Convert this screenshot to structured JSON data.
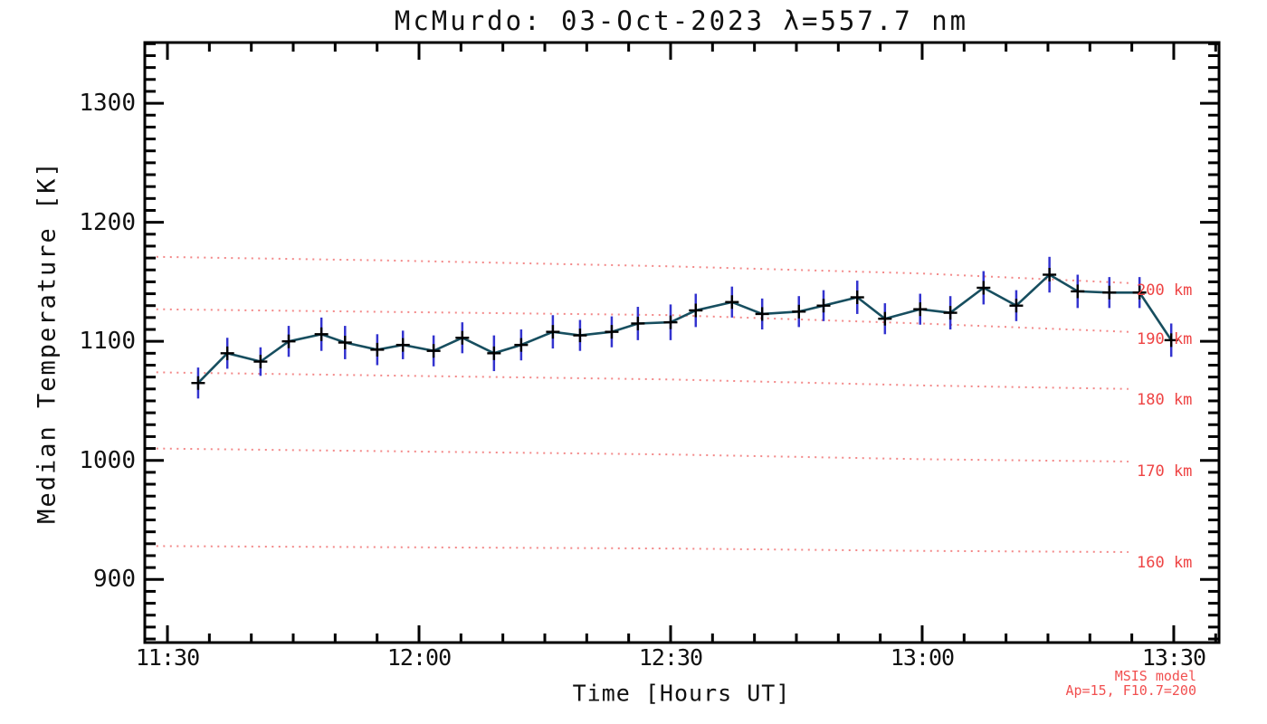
{
  "colors": {
    "frame": "#000000",
    "data_line": "#174e5f",
    "error_bar": "#3333cf",
    "marker": "#000000",
    "model_line": "#f38888",
    "model_label": "#ee4343",
    "annotation": "#f15050"
  },
  "chart_data": {
    "type": "line",
    "title": "McMurdo: 03-Oct-2023 λ=557.7 nm",
    "xlabel": "Time [Hours UT]",
    "ylabel": "Median Temperature [K]",
    "xlim": [
      11.455,
      13.59
    ],
    "ylim": [
      847,
      1351
    ],
    "grid": false,
    "x_major_ticks": [
      {
        "value": 11.5,
        "label": "11:30"
      },
      {
        "value": 12.0,
        "label": "12:00"
      },
      {
        "value": 12.5,
        "label": "12:30"
      },
      {
        "value": 13.0,
        "label": "13:00"
      },
      {
        "value": 13.5,
        "label": "13:30"
      }
    ],
    "x_minor_step_hours": 0.0833333,
    "y_major_ticks": [
      {
        "value": 900,
        "label": "900"
      },
      {
        "value": 1000,
        "label": "1000"
      },
      {
        "value": 1100,
        "label": "1100"
      },
      {
        "value": 1200,
        "label": "1200"
      },
      {
        "value": 1300,
        "label": "1300"
      }
    ],
    "y_minor_step": 10,
    "series": [
      {
        "name": "Median Temperature",
        "marker": "plus",
        "times_hhmm": [
          "11:34",
          "11:37",
          "11:41",
          "11:44",
          "11:48",
          "11:51",
          "11:55",
          "11:58",
          "12:02",
          "12:05",
          "12:09",
          "12:12",
          "12:16",
          "12:19",
          "12:23",
          "12:26",
          "12:30",
          "12:33",
          "12:37",
          "12:41",
          "12:45",
          "12:48",
          "12:52",
          "12:56",
          "13:00",
          "13:03",
          "13:07",
          "13:11",
          "13:15",
          "13:19",
          "13:22",
          "13:26",
          "13:30"
        ],
        "x_hours": [
          11.561,
          11.619,
          11.685,
          11.741,
          11.806,
          11.853,
          11.917,
          11.968,
          12.029,
          12.086,
          12.149,
          12.203,
          12.266,
          12.32,
          12.383,
          12.435,
          12.5,
          12.55,
          12.622,
          12.682,
          12.755,
          12.804,
          12.871,
          12.926,
          12.996,
          13.056,
          13.122,
          13.187,
          13.253,
          13.309,
          13.372,
          13.432,
          13.495
        ],
        "values": [
          1065,
          1090,
          1083,
          1100,
          1106,
          1099,
          1093,
          1097,
          1092,
          1103,
          1090,
          1097,
          1108,
          1105,
          1108,
          1115,
          1116,
          1126,
          1133,
          1123,
          1125,
          1130,
          1137,
          1119,
          1127,
          1124,
          1145,
          1130,
          1156,
          1142,
          1141,
          1141,
          1101
        ],
        "errors": [
          13,
          13,
          12,
          13,
          14,
          14,
          13,
          12,
          13,
          13,
          15,
          13,
          14,
          13,
          13,
          14,
          15,
          14,
          13,
          13,
          13,
          13,
          14,
          13,
          13,
          14,
          14,
          13,
          15,
          14,
          13,
          13,
          14
        ]
      }
    ],
    "model_lines": [
      {
        "label": "200 km",
        "label_value": 1143,
        "points": [
          [
            11.478,
            1171
          ],
          [
            11.93,
            1168
          ],
          [
            12.5,
            1163
          ],
          [
            13.0,
            1157
          ],
          [
            13.41,
            1149
          ]
        ]
      },
      {
        "label": "190 km",
        "label_value": 1102,
        "points": [
          [
            11.478,
            1127
          ],
          [
            12.5,
            1122
          ],
          [
            13.0,
            1115
          ],
          [
            13.41,
            1108
          ]
        ]
      },
      {
        "label": "180 km",
        "label_value": 1051,
        "points": [
          [
            11.478,
            1074
          ],
          [
            12.5,
            1068
          ],
          [
            13.0,
            1063
          ],
          [
            13.41,
            1060
          ]
        ]
      },
      {
        "label": "170 km",
        "label_value": 991,
        "points": [
          [
            11.478,
            1010
          ],
          [
            12.5,
            1005
          ],
          [
            13.0,
            1001
          ],
          [
            13.41,
            999
          ]
        ]
      },
      {
        "label": "160 km",
        "label_value": 914,
        "points": [
          [
            11.478,
            928
          ],
          [
            12.5,
            926
          ],
          [
            13.0,
            924
          ],
          [
            13.41,
            923
          ]
        ]
      }
    ],
    "annotations": {
      "line1": "MSIS model",
      "line2": "Ap=15, F10.7=200"
    }
  }
}
